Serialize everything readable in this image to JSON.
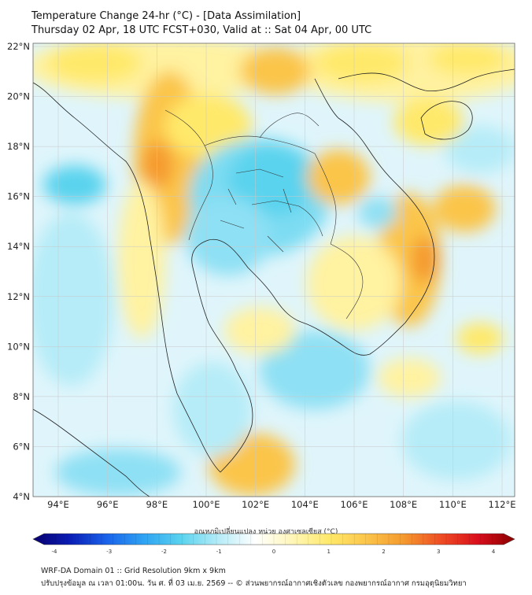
{
  "header": {
    "title_line1": "Temperature Change 24-hr (°C) - [Data Assimilation]",
    "title_line2": "Thursday 02 Apr, 18 UTC FCST+030, Valid at :: Sat 04 Apr, 00 UTC"
  },
  "map": {
    "lat_labels": [
      "22°N",
      "20°N",
      "18°N",
      "16°N",
      "14°N",
      "12°N",
      "10°N",
      "8°N",
      "6°N",
      "4°N"
    ],
    "lon_labels": [
      "94°E",
      "96°E",
      "98°E",
      "100°E",
      "102°E",
      "104°E",
      "106°E",
      "108°E",
      "110°E",
      "112°E"
    ],
    "colors": {
      "ocean_base": "#dff5fb",
      "cyan": "#5ad3ee",
      "light_cyan": "#b5ecf8",
      "yellow": "#ffe96a",
      "pale_yellow": "#fff6b8",
      "orange": "#fbc54a",
      "dark_orange": "#f59a2e",
      "grid": "#c8c8c8",
      "coast": "#222222"
    }
  },
  "colorbar": {
    "title": "อุณหภูมิเปลี่ยนแปลง หน่วย องศาเซลเซียส (°C)",
    "ticks": [
      "-4",
      "-3",
      "-2",
      "-1",
      "0",
      "1",
      "2",
      "3",
      "4"
    ],
    "min": -4,
    "max": 4,
    "stops": [
      "#08006e",
      "#0a1db5",
      "#1a63ea",
      "#2fa4f3",
      "#5ad3ee",
      "#b5ecf8",
      "#ffffff",
      "#fff6b8",
      "#ffe96a",
      "#fbc54a",
      "#f59a2e",
      "#ef4d24",
      "#d90f1c",
      "#8b0000"
    ]
  },
  "footer": {
    "line1": "WRF-DA Domain 01 :: Grid Resolution 9km x 9km",
    "line2": "ปรับปรุงข้อมูล ณ เวลา 01:00น. วัน ศ. ที่ 03 เม.ย. 2569 -- © ส่วนพยากรณ์อากาศเชิงตัวเลข กองพยากรณ์อากาศ กรมอุตุนิยมวิทยา"
  }
}
